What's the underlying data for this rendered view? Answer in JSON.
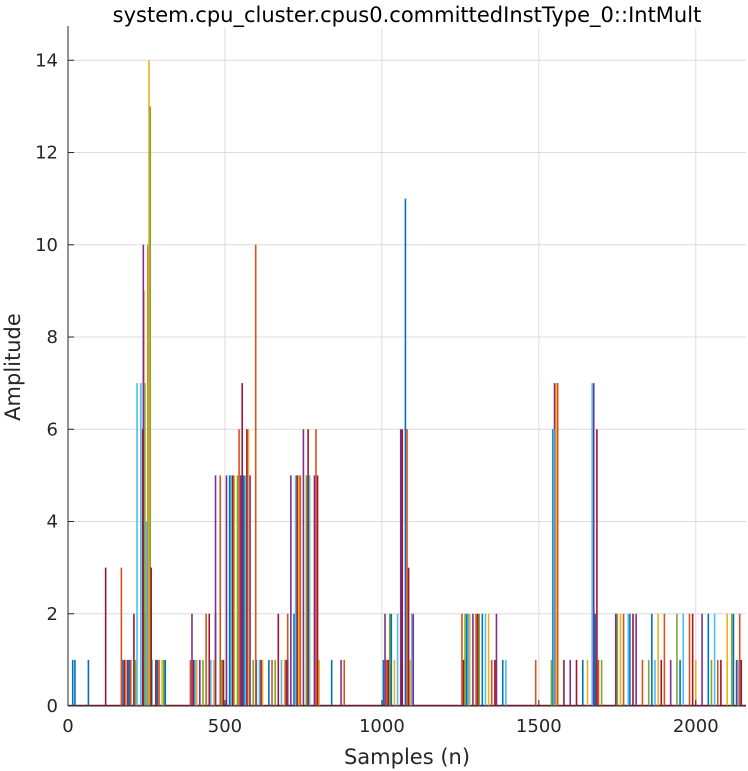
{
  "chart_data": {
    "type": "bar",
    "title": "system.cpu_cluster.cpus0.committedInstType_0::IntMult",
    "xlabel": "Samples (n)",
    "ylabel": "Amplitude",
    "xlim": [
      0,
      2160
    ],
    "ylim": [
      0,
      14.7
    ],
    "xticks": [
      0,
      500,
      1000,
      1500,
      2000
    ],
    "yticks": [
      0,
      2,
      4,
      6,
      8,
      10,
      12,
      14
    ],
    "grid": true,
    "legend": "none",
    "colors": [
      "#0072bd",
      "#d95319",
      "#edb120",
      "#7e2f8e",
      "#77ac30",
      "#4dbeee",
      "#a2142f"
    ],
    "series": [
      {
        "x": [
          15,
          22,
          65,
          175,
          195,
          248,
          260,
          285,
          310,
          470,
          515,
          560,
          600,
          640,
          720,
          760,
          840,
          1005,
          1030,
          1075,
          1270,
          1320,
          1385,
          1545,
          1640,
          1680,
          1790,
          1860,
          1950,
          2040,
          2120
        ],
        "values": [
          1,
          1,
          1,
          1,
          1,
          2,
          3,
          1,
          1,
          2,
          5,
          5,
          1,
          1,
          2,
          5,
          1,
          1,
          2,
          11,
          2,
          2,
          1,
          6,
          1,
          2,
          2,
          2,
          1,
          2,
          2
        ]
      },
      {
        "x": [
          170,
          200,
          255,
          290,
          390,
          440,
          485,
          545,
          598,
          650,
          700,
          740,
          790,
          880,
          1015,
          1080,
          1255,
          1300,
          1350,
          1490,
          1560,
          1690,
          1770,
          1830,
          1900,
          1980,
          2070,
          2140
        ],
        "values": [
          3,
          1,
          10,
          1,
          1,
          2,
          5,
          6,
          10,
          1,
          2,
          5,
          6,
          1,
          1,
          6,
          2,
          2,
          1,
          1,
          7,
          1,
          2,
          1,
          2,
          2,
          1,
          2
        ]
      },
      {
        "x": [
          185,
          242,
          258,
          300,
          410,
          465,
          530,
          575,
          620,
          690,
          735,
          800,
          1040,
          1090,
          1280,
          1340,
          1555,
          1655,
          1760,
          1880,
          2000,
          2100
        ],
        "values": [
          1,
          9,
          14,
          1,
          1,
          1,
          5,
          6,
          1,
          1,
          5,
          1,
          1,
          1,
          2,
          2,
          7,
          1,
          2,
          2,
          1,
          2
        ]
      },
      {
        "x": [
          190,
          240,
          395,
          420,
          470,
          505,
          550,
          580,
          700,
          710,
          750,
          785,
          870,
          1010,
          1060,
          1100,
          1290,
          1365,
          1550,
          1600,
          1675,
          1745,
          1810,
          1920,
          2020,
          2130
        ],
        "values": [
          1,
          10,
          2,
          1,
          5,
          5,
          5,
          5,
          1,
          5,
          6,
          5,
          1,
          2,
          6,
          2,
          2,
          2,
          7,
          1,
          7,
          2,
          2,
          1,
          2,
          1
        ]
      },
      {
        "x": [
          215,
          245,
          262,
          305,
          430,
          490,
          540,
          590,
          660,
          760,
          1025,
          1265,
          1310,
          1540,
          1700,
          1750,
          1850,
          1940,
          2050,
          2115
        ],
        "values": [
          1,
          7,
          13,
          1,
          1,
          1,
          5,
          1,
          1,
          5,
          2,
          2,
          2,
          1,
          1,
          2,
          1,
          2,
          1,
          2
        ]
      },
      {
        "x": [
          220,
          232,
          250,
          268,
          405,
          455,
          520,
          565,
          610,
          680,
          725,
          770,
          1050,
          1095,
          1275,
          1330,
          1395,
          1548,
          1670,
          1785,
          1870,
          1960,
          2060,
          2135
        ],
        "values": [
          7,
          7,
          4,
          1,
          1,
          1,
          5,
          5,
          1,
          1,
          5,
          5,
          2,
          2,
          2,
          2,
          1,
          6,
          7,
          2,
          1,
          2,
          2,
          1
        ]
      },
      {
        "x": [
          120,
          180,
          210,
          238,
          265,
          280,
          400,
          450,
          495,
          525,
          555,
          570,
          615,
          670,
          695,
          730,
          765,
          795,
          1020,
          1065,
          1085,
          1260,
          1305,
          1360,
          1580,
          1620,
          1685,
          1800,
          1890,
          1990,
          2080,
          2145
        ],
        "values": [
          3,
          1,
          2,
          6,
          3,
          1,
          1,
          2,
          1,
          5,
          7,
          6,
          1,
          2,
          1,
          5,
          6,
          5,
          1,
          6,
          3,
          1,
          2,
          1,
          1,
          1,
          6,
          2,
          1,
          2,
          1,
          1
        ]
      }
    ]
  }
}
